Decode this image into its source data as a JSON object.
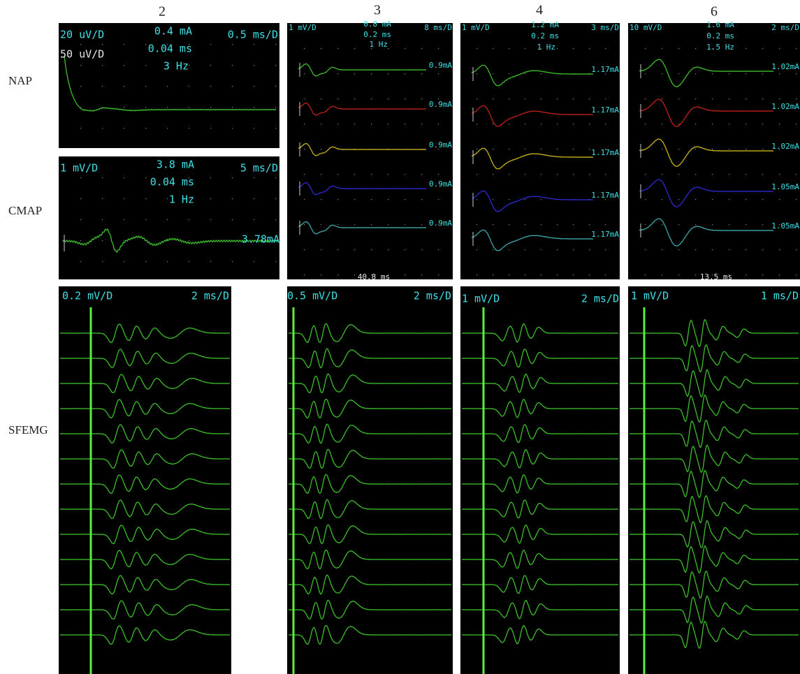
{
  "columns": [
    "2",
    "3",
    "4",
    "6"
  ],
  "rows": [
    "NAP",
    "CMAP",
    "SFEMG"
  ],
  "panels": {
    "nap_2": {
      "sensitivity": "20 uV/D",
      "sensitivity_2": "50 uV/D",
      "current": "0.4 mA",
      "duration": "0.04 ms",
      "rate": "3 Hz",
      "sweep": "0.5 ms/D"
    },
    "cmap_2": {
      "sensitivity": "1 mV/D",
      "current": "3.8 mA",
      "duration": "0.04 ms",
      "rate": "1 Hz",
      "sweep": "5 ms/D",
      "trace_label": "3.78mA"
    },
    "col_3": {
      "sensitivity": "1 mV/D",
      "current": "0.8 mA",
      "duration": "0.2 ms",
      "rate": "1 Hz",
      "sweep": "8 ms/D",
      "trace_labels": [
        "0.9mA",
        "0.9mA",
        "0.9mA",
        "0.9mA",
        "0.9mA"
      ],
      "footer": "40.8 ms"
    },
    "col_4": {
      "sensitivity": "1 mV/D",
      "current": "1.2 mA",
      "duration": "0.2 ms",
      "rate": "1 Hz",
      "sweep": "3 ms/D",
      "trace_labels": [
        "1.17mA",
        "1.17mA",
        "1.17mA",
        "1.17mA",
        "1.17mA"
      ]
    },
    "col_6": {
      "sensitivity": "10 mV/D",
      "current": "1.6 mA",
      "duration": "0.2 ms",
      "rate": "1.5 Hz",
      "sweep": "2 ms/D",
      "trace_labels": [
        "1.02mA",
        "1.02mA",
        "1.02mA",
        "1.05mA",
        "1.05mA"
      ],
      "footer": "13.5 ms"
    },
    "sfemg_2": {
      "sensitivity": "0.2 mV/D",
      "sweep": "2 ms/D"
    },
    "sfemg_3": {
      "sensitivity": "0.5 mV/D",
      "sweep": "2 ms/D"
    },
    "sfemg_4": {
      "sensitivity": "1 mV/D",
      "sweep": "2 ms/D"
    },
    "sfemg_6": {
      "sensitivity": "1 mV/D",
      "sweep": "1 ms/D"
    }
  }
}
